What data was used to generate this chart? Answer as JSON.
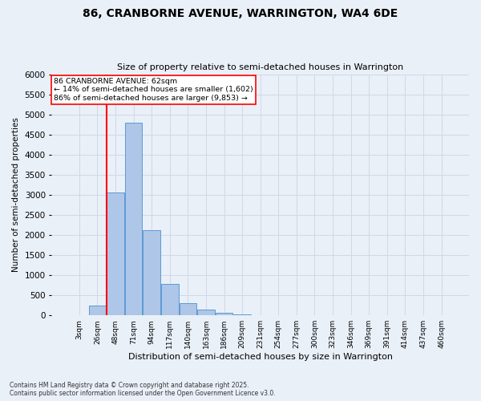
{
  "title_line1": "86, CRANBORNE AVENUE, WARRINGTON, WA4 6DE",
  "title_line2": "Size of property relative to semi-detached houses in Warrington",
  "xlabel": "Distribution of semi-detached houses by size in Warrington",
  "ylabel": "Number of semi-detached properties",
  "categories": [
    "3sqm",
    "26sqm",
    "48sqm",
    "71sqm",
    "94sqm",
    "117sqm",
    "140sqm",
    "163sqm",
    "186sqm",
    "209sqm",
    "231sqm",
    "254sqm",
    "277sqm",
    "300sqm",
    "323sqm",
    "346sqm",
    "369sqm",
    "391sqm",
    "414sqm",
    "437sqm",
    "460sqm"
  ],
  "values": [
    0,
    240,
    3050,
    4800,
    2120,
    780,
    310,
    135,
    65,
    30,
    10,
    5,
    3,
    0,
    0,
    0,
    0,
    0,
    0,
    0,
    0
  ],
  "bar_color": "#aec6e8",
  "bar_edge_color": "#5b9bd5",
  "grid_color": "#d0d8e8",
  "bg_color": "#eaf0f8",
  "vline_color": "red",
  "property_bin_index": 2,
  "annotation_text_line1": "86 CRANBORNE AVENUE: 62sqm",
  "annotation_text_line2": "← 14% of semi-detached houses are smaller (1,602)",
  "annotation_text_line3": "86% of semi-detached houses are larger (9,853) →",
  "ylim": [
    0,
    6000
  ],
  "yticks": [
    0,
    500,
    1000,
    1500,
    2000,
    2500,
    3000,
    3500,
    4000,
    4500,
    5000,
    5500,
    6000
  ],
  "footnote_line1": "Contains HM Land Registry data © Crown copyright and database right 2025.",
  "footnote_line2": "Contains public sector information licensed under the Open Government Licence v3.0."
}
